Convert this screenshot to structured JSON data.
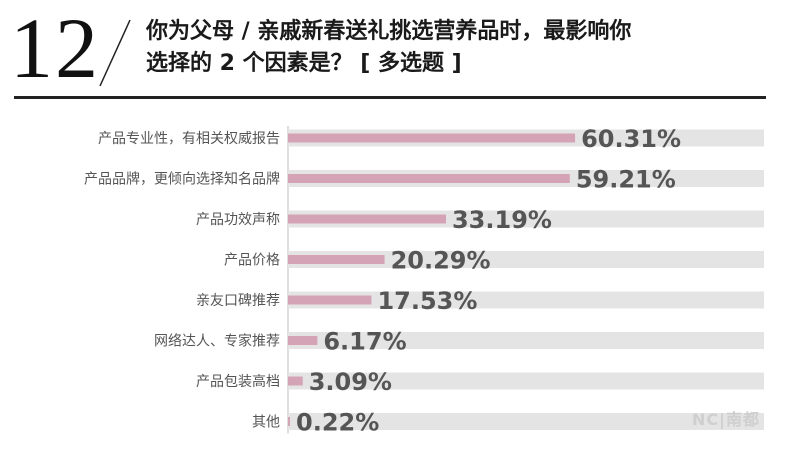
{
  "header": {
    "question_number": "12",
    "title_line1": "你为父母 / 亲戚新春送礼挑选营养品时，最影响你",
    "title_line2": "选择的 2 个因素是？   [ 多选题 ]"
  },
  "chart_data": {
    "type": "bar",
    "orientation": "horizontal",
    "categories": [
      "产品专业性，有相关权威报告",
      "产品品牌，更倾向选择知名品牌",
      "产品功效声称",
      "产品价格",
      "亲友口碑推荐",
      "网络达人、专家推荐",
      "产品包装高档",
      "其他"
    ],
    "values": [
      60.31,
      59.21,
      33.19,
      20.29,
      17.53,
      6.17,
      3.09,
      0.22
    ],
    "value_labels": [
      "60.31%",
      "59.21%",
      "33.19%",
      "20.29%",
      "17.53%",
      "6.17%",
      "3.09%",
      "0.22%"
    ],
    "xlim": [
      0,
      100
    ],
    "bar_color": "#d4a3b5",
    "track_color": "#e4e4e4",
    "label_color": "#555555"
  },
  "watermark": "NC|南都"
}
